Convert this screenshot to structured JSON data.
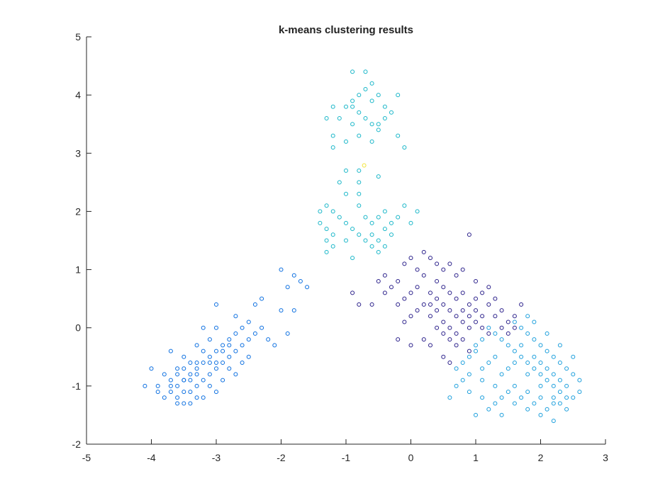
{
  "chart_data": {
    "type": "scatter",
    "title": "k-means clustering results",
    "xlabel": "",
    "ylabel": "",
    "xlim": [
      -5,
      3
    ],
    "ylim": [
      -2,
      5
    ],
    "xticks": [
      -5,
      -4,
      -3,
      -2,
      -1,
      0,
      1,
      2,
      3
    ],
    "yticks": [
      -2,
      -1,
      0,
      1,
      2,
      3,
      4,
      5
    ],
    "xtick_labels": [
      "-5",
      "-4",
      "-3",
      "-2",
      "-1",
      "0",
      "1",
      "2",
      "3"
    ],
    "ytick_labels": [
      "-2",
      "-1",
      "0",
      "1",
      "2",
      "3",
      "4",
      "5"
    ],
    "grid": false,
    "legend": "none",
    "marker": "circle-open",
    "series": [
      {
        "color": "#0a6ee0",
        "points": [
          [
            -3.6,
            -1.0
          ],
          [
            -3.5,
            -0.9
          ],
          [
            -3.4,
            -0.8
          ],
          [
            -3.3,
            -0.7
          ],
          [
            -3.7,
            -1.1
          ],
          [
            -3.8,
            -1.2
          ],
          [
            -3.5,
            -1.3
          ],
          [
            -3.2,
            -0.6
          ],
          [
            -3.1,
            -0.5
          ],
          [
            -3.0,
            -0.4
          ],
          [
            -2.9,
            -0.3
          ],
          [
            -2.8,
            -0.2
          ],
          [
            -2.7,
            -0.1
          ],
          [
            -2.6,
            0.0
          ],
          [
            -3.6,
            -0.7
          ],
          [
            -3.4,
            -1.1
          ],
          [
            -3.3,
            -1.0
          ],
          [
            -3.2,
            -0.9
          ],
          [
            -3.0,
            -0.7
          ],
          [
            -2.9,
            -0.6
          ],
          [
            -2.8,
            -0.5
          ],
          [
            -2.7,
            -0.4
          ],
          [
            -3.9,
            -1.0
          ],
          [
            -4.0,
            -0.7
          ],
          [
            -4.1,
            -1.0
          ],
          [
            -3.7,
            -0.4
          ],
          [
            -3.5,
            -0.5
          ],
          [
            -3.3,
            -0.3
          ],
          [
            -3.1,
            -0.2
          ],
          [
            -3.0,
            0.0
          ],
          [
            -2.6,
            -0.3
          ],
          [
            -2.5,
            -0.2
          ],
          [
            -2.4,
            -0.1
          ],
          [
            -2.3,
            0.0
          ],
          [
            -2.5,
            0.1
          ],
          [
            -2.4,
            0.4
          ],
          [
            -2.3,
            0.5
          ],
          [
            -3.6,
            -1.2
          ],
          [
            -3.4,
            -1.3
          ],
          [
            -3.2,
            -1.2
          ],
          [
            -3.0,
            -1.1
          ],
          [
            -3.8,
            -0.8
          ],
          [
            -3.5,
            -0.7
          ],
          [
            -3.3,
            -0.6
          ],
          [
            -3.1,
            -0.8
          ],
          [
            -2.9,
            -0.9
          ],
          [
            -2.7,
            -0.8
          ],
          [
            -2.6,
            -0.6
          ],
          [
            -2.8,
            -0.7
          ],
          [
            -3.0,
            -0.6
          ],
          [
            -2.0,
            0.3
          ],
          [
            -1.9,
            0.7
          ],
          [
            -1.8,
            0.9
          ],
          [
            -2.0,
            1.0
          ],
          [
            -1.7,
            0.8
          ],
          [
            -1.6,
            0.7
          ],
          [
            -1.9,
            -0.1
          ],
          [
            -2.1,
            -0.3
          ],
          [
            -2.2,
            -0.2
          ],
          [
            -1.8,
            0.3
          ],
          [
            -3.5,
            -0.9
          ],
          [
            -3.4,
            -0.6
          ],
          [
            -3.6,
            -0.8
          ],
          [
            -3.7,
            -1.0
          ],
          [
            -3.2,
            -0.4
          ],
          [
            -3.1,
            -0.6
          ],
          [
            -2.9,
            -0.4
          ],
          [
            -2.8,
            -0.3
          ],
          [
            -3.4,
            -0.9
          ],
          [
            -3.3,
            -0.8
          ],
          [
            -3.5,
            -1.1
          ],
          [
            -3.7,
            -0.9
          ],
          [
            -3.9,
            -1.1
          ],
          [
            -3.6,
            -1.3
          ],
          [
            -3.3,
            -1.2
          ],
          [
            -3.1,
            -1.0
          ],
          [
            -3.2,
            0.0
          ],
          [
            -3.0,
            0.4
          ],
          [
            -2.7,
            0.2
          ],
          [
            -2.5,
            -0.5
          ]
        ]
      },
      {
        "color": "#2a1f8a",
        "points": [
          [
            0.3,
            0.6
          ],
          [
            0.4,
            0.5
          ],
          [
            0.5,
            0.4
          ],
          [
            0.6,
            0.3
          ],
          [
            0.7,
            0.2
          ],
          [
            0.8,
            0.1
          ],
          [
            0.9,
            0.0
          ],
          [
            1.0,
            0.5
          ],
          [
            1.1,
            0.6
          ],
          [
            1.2,
            0.4
          ],
          [
            0.2,
            0.9
          ],
          [
            0.1,
            1.0
          ],
          [
            0.0,
            1.2
          ],
          [
            -0.1,
            1.1
          ],
          [
            -0.2,
            0.8
          ],
          [
            -0.3,
            0.7
          ],
          [
            -0.4,
            0.6
          ],
          [
            0.3,
            0.2
          ],
          [
            0.4,
            0.0
          ],
          [
            0.5,
            -0.1
          ],
          [
            0.6,
            -0.2
          ],
          [
            0.7,
            -0.3
          ],
          [
            0.8,
            0.3
          ],
          [
            0.9,
            0.2
          ],
          [
            1.0,
            0.1
          ],
          [
            1.1,
            0.0
          ],
          [
            1.2,
            -0.1
          ],
          [
            1.3,
            0.2
          ],
          [
            1.4,
            0.3
          ],
          [
            1.5,
            0.1
          ],
          [
            1.6,
            0.2
          ],
          [
            1.7,
            0.4
          ],
          [
            0.2,
            0.4
          ],
          [
            0.1,
            0.3
          ],
          [
            0.0,
            0.2
          ],
          [
            -0.1,
            0.1
          ],
          [
            0.4,
            0.8
          ],
          [
            0.5,
            0.7
          ],
          [
            0.6,
            0.6
          ],
          [
            0.7,
            0.5
          ],
          [
            0.8,
            0.6
          ],
          [
            0.9,
            0.4
          ],
          [
            1.0,
            0.3
          ],
          [
            1.1,
            0.2
          ],
          [
            0.3,
            -0.3
          ],
          [
            0.5,
            -0.5
          ],
          [
            0.6,
            -0.6
          ],
          [
            0.9,
            1.6
          ],
          [
            0.8,
            1.0
          ],
          [
            0.6,
            1.1
          ],
          [
            0.3,
            1.2
          ],
          [
            -0.4,
            0.9
          ],
          [
            -0.5,
            0.8
          ],
          [
            -0.6,
            0.4
          ],
          [
            -0.8,
            0.4
          ],
          [
            -0.9,
            0.6
          ],
          [
            -0.2,
            -0.2
          ],
          [
            0.0,
            -0.3
          ],
          [
            0.2,
            -0.2
          ],
          [
            1.3,
            0.5
          ],
          [
            1.2,
            0.7
          ],
          [
            1.0,
            0.8
          ],
          [
            0.7,
            0.9
          ],
          [
            0.5,
            1.0
          ],
          [
            0.4,
            1.1
          ],
          [
            0.2,
            1.3
          ],
          [
            0.1,
            0.7
          ],
          [
            0.0,
            0.6
          ],
          [
            -0.1,
            0.5
          ],
          [
            -0.2,
            0.4
          ],
          [
            0.6,
            0.0
          ],
          [
            0.7,
            -0.1
          ],
          [
            0.8,
            -0.2
          ],
          [
            0.9,
            -0.4
          ],
          [
            1.4,
            0.0
          ],
          [
            1.5,
            -0.1
          ],
          [
            1.6,
            0.0
          ],
          [
            0.5,
            0.1
          ],
          [
            0.4,
            0.3
          ],
          [
            0.3,
            0.4
          ]
        ]
      },
      {
        "color": "#1a9edc",
        "points": [
          [
            1.5,
            -0.3
          ],
          [
            1.6,
            -0.4
          ],
          [
            1.7,
            -0.5
          ],
          [
            1.8,
            -0.6
          ],
          [
            1.9,
            -0.7
          ],
          [
            2.0,
            -0.8
          ],
          [
            2.1,
            -0.9
          ],
          [
            2.2,
            -1.0
          ],
          [
            2.3,
            -1.1
          ],
          [
            2.4,
            -1.0
          ],
          [
            1.4,
            -0.2
          ],
          [
            1.3,
            -0.1
          ],
          [
            1.2,
            0.0
          ],
          [
            1.1,
            -0.2
          ],
          [
            1.0,
            -0.4
          ],
          [
            0.9,
            -0.5
          ],
          [
            0.8,
            -0.6
          ],
          [
            0.7,
            -0.7
          ],
          [
            1.6,
            0.1
          ],
          [
            1.7,
            0.0
          ],
          [
            1.8,
            -0.1
          ],
          [
            1.9,
            -0.2
          ],
          [
            2.0,
            -0.3
          ],
          [
            2.1,
            -0.4
          ],
          [
            2.2,
            -0.5
          ],
          [
            2.3,
            -0.6
          ],
          [
            2.4,
            -0.7
          ],
          [
            2.5,
            -0.8
          ],
          [
            2.6,
            -0.9
          ],
          [
            2.5,
            -1.2
          ],
          [
            2.3,
            -1.3
          ],
          [
            2.1,
            -1.4
          ],
          [
            1.9,
            -1.3
          ],
          [
            1.7,
            -1.2
          ],
          [
            1.5,
            -1.1
          ],
          [
            1.3,
            -1.0
          ],
          [
            1.1,
            -0.9
          ],
          [
            0.9,
            -0.8
          ],
          [
            0.7,
            -1.0
          ],
          [
            0.6,
            -1.2
          ],
          [
            1.0,
            -1.5
          ],
          [
            1.2,
            -1.4
          ],
          [
            1.4,
            -1.5
          ],
          [
            2.0,
            -1.5
          ],
          [
            2.2,
            -1.6
          ],
          [
            2.4,
            -1.4
          ],
          [
            2.6,
            -1.1
          ],
          [
            2.5,
            -0.5
          ],
          [
            2.3,
            -0.3
          ],
          [
            2.1,
            -0.1
          ],
          [
            1.9,
            0.1
          ],
          [
            1.8,
            0.2
          ],
          [
            1.6,
            -0.6
          ],
          [
            1.5,
            -0.7
          ],
          [
            1.4,
            -0.8
          ],
          [
            1.8,
            -0.8
          ],
          [
            2.0,
            -1.0
          ],
          [
            2.2,
            -1.2
          ],
          [
            1.6,
            -1.0
          ],
          [
            1.8,
            -1.1
          ],
          [
            1.2,
            -0.6
          ],
          [
            1.3,
            -0.5
          ],
          [
            1.1,
            -0.7
          ],
          [
            1.0,
            -0.3
          ],
          [
            0.8,
            -0.9
          ],
          [
            0.9,
            -1.1
          ],
          [
            1.1,
            -1.2
          ],
          [
            1.3,
            -1.3
          ],
          [
            1.7,
            -0.3
          ],
          [
            1.9,
            -0.5
          ],
          [
            2.0,
            -0.6
          ],
          [
            2.1,
            -0.7
          ],
          [
            2.2,
            -0.8
          ],
          [
            2.3,
            -0.9
          ],
          [
            2.4,
            -1.2
          ],
          [
            2.2,
            -1.3
          ],
          [
            2.0,
            -1.2
          ],
          [
            1.8,
            -1.4
          ],
          [
            1.6,
            -1.3
          ],
          [
            1.4,
            -1.2
          ]
        ]
      },
      {
        "color": "#17b6c8",
        "points": [
          [
            -1.0,
            3.8
          ],
          [
            -0.9,
            3.9
          ],
          [
            -0.8,
            4.0
          ],
          [
            -0.7,
            4.1
          ],
          [
            -0.6,
            4.2
          ],
          [
            -0.5,
            4.0
          ],
          [
            -0.4,
            3.8
          ],
          [
            -0.3,
            3.7
          ],
          [
            -0.2,
            4.0
          ],
          [
            -0.9,
            4.4
          ],
          [
            -0.7,
            4.4
          ],
          [
            -0.8,
            3.7
          ],
          [
            -0.7,
            3.6
          ],
          [
            -0.6,
            3.5
          ],
          [
            -0.5,
            3.4
          ],
          [
            -0.6,
            3.9
          ],
          [
            -1.2,
            3.8
          ],
          [
            -1.1,
            3.6
          ],
          [
            -1.2,
            3.3
          ],
          [
            -1.0,
            3.2
          ],
          [
            -0.9,
            3.5
          ],
          [
            -0.8,
            3.3
          ],
          [
            -0.6,
            3.2
          ],
          [
            -1.3,
            3.6
          ],
          [
            -1.2,
            3.1
          ],
          [
            -0.2,
            3.3
          ],
          [
            -0.1,
            3.1
          ],
          [
            -0.5,
            3.5
          ],
          [
            -0.4,
            3.6
          ],
          [
            -0.9,
            3.8
          ],
          [
            -1.3,
            2.1
          ],
          [
            -1.2,
            2.0
          ],
          [
            -1.1,
            1.9
          ],
          [
            -1.0,
            1.8
          ],
          [
            -0.9,
            1.7
          ],
          [
            -0.8,
            1.6
          ],
          [
            -0.7,
            1.5
          ],
          [
            -0.6,
            1.4
          ],
          [
            -0.5,
            1.3
          ],
          [
            -0.4,
            1.7
          ],
          [
            -0.3,
            1.8
          ],
          [
            -0.2,
            1.9
          ],
          [
            -0.1,
            2.1
          ],
          [
            -0.4,
            2.0
          ],
          [
            -0.5,
            1.9
          ],
          [
            -0.6,
            1.8
          ],
          [
            -1.3,
            1.5
          ],
          [
            -1.3,
            1.3
          ],
          [
            -1.2,
            1.4
          ],
          [
            -1.0,
            1.5
          ],
          [
            -0.9,
            1.2
          ],
          [
            -0.8,
            2.1
          ],
          [
            -0.8,
            2.3
          ],
          [
            -0.8,
            2.5
          ],
          [
            -0.8,
            2.7
          ],
          [
            -1.0,
            2.7
          ],
          [
            -1.0,
            2.3
          ],
          [
            -1.1,
            2.5
          ],
          [
            -0.5,
            2.6
          ],
          [
            -1.4,
            2.0
          ],
          [
            -1.4,
            1.8
          ],
          [
            -1.3,
            1.7
          ],
          [
            -1.2,
            1.6
          ],
          [
            -0.7,
            1.9
          ],
          [
            -0.6,
            1.6
          ],
          [
            -0.5,
            1.5
          ],
          [
            -0.4,
            1.4
          ],
          [
            -0.3,
            1.6
          ],
          [
            0.0,
            1.8
          ],
          [
            0.1,
            2.0
          ]
        ]
      },
      {
        "color": "#f2e436",
        "points": [
          [
            -0.72,
            2.79
          ]
        ]
      }
    ]
  }
}
